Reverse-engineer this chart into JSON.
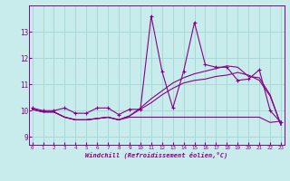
{
  "xlabel": "Windchill (Refroidissement éolien,°C)",
  "background_color": "#c8ecec",
  "grid_color": "#a8d8d8",
  "line_color": "#880088",
  "x": [
    0,
    1,
    2,
    3,
    4,
    5,
    6,
    7,
    8,
    9,
    10,
    11,
    12,
    13,
    14,
    15,
    16,
    17,
    18,
    19,
    20,
    21,
    22,
    23
  ],
  "series1": [
    10.1,
    10.0,
    10.0,
    10.1,
    9.9,
    9.9,
    10.1,
    10.1,
    9.85,
    10.05,
    10.05,
    13.6,
    11.5,
    10.1,
    11.5,
    13.35,
    11.75,
    11.65,
    11.65,
    11.15,
    11.2,
    11.55,
    10.0,
    9.55
  ],
  "series2": [
    10.05,
    9.95,
    9.95,
    9.75,
    9.65,
    9.65,
    9.7,
    9.75,
    9.65,
    9.75,
    9.75,
    9.75,
    9.75,
    9.75,
    9.75,
    9.75,
    9.75,
    9.75,
    9.75,
    9.75,
    9.75,
    9.75,
    9.55,
    9.6
  ],
  "series3": [
    10.05,
    9.95,
    9.95,
    9.75,
    9.65,
    9.65,
    9.7,
    9.75,
    9.65,
    9.8,
    10.05,
    10.3,
    10.6,
    10.85,
    11.05,
    11.15,
    11.2,
    11.3,
    11.35,
    11.45,
    11.35,
    11.15,
    10.55,
    9.45
  ],
  "series4": [
    10.05,
    9.95,
    9.95,
    9.75,
    9.65,
    9.65,
    9.7,
    9.75,
    9.65,
    9.8,
    10.1,
    10.45,
    10.75,
    11.05,
    11.25,
    11.4,
    11.5,
    11.6,
    11.7,
    11.65,
    11.3,
    11.25,
    10.6,
    9.45
  ],
  "ylim": [
    8.7,
    14.0
  ],
  "yticks": [
    9,
    10,
    11,
    12,
    13
  ],
  "xticks": [
    0,
    1,
    2,
    3,
    4,
    5,
    6,
    7,
    8,
    9,
    10,
    11,
    12,
    13,
    14,
    15,
    16,
    17,
    18,
    19,
    20,
    21,
    22,
    23
  ]
}
